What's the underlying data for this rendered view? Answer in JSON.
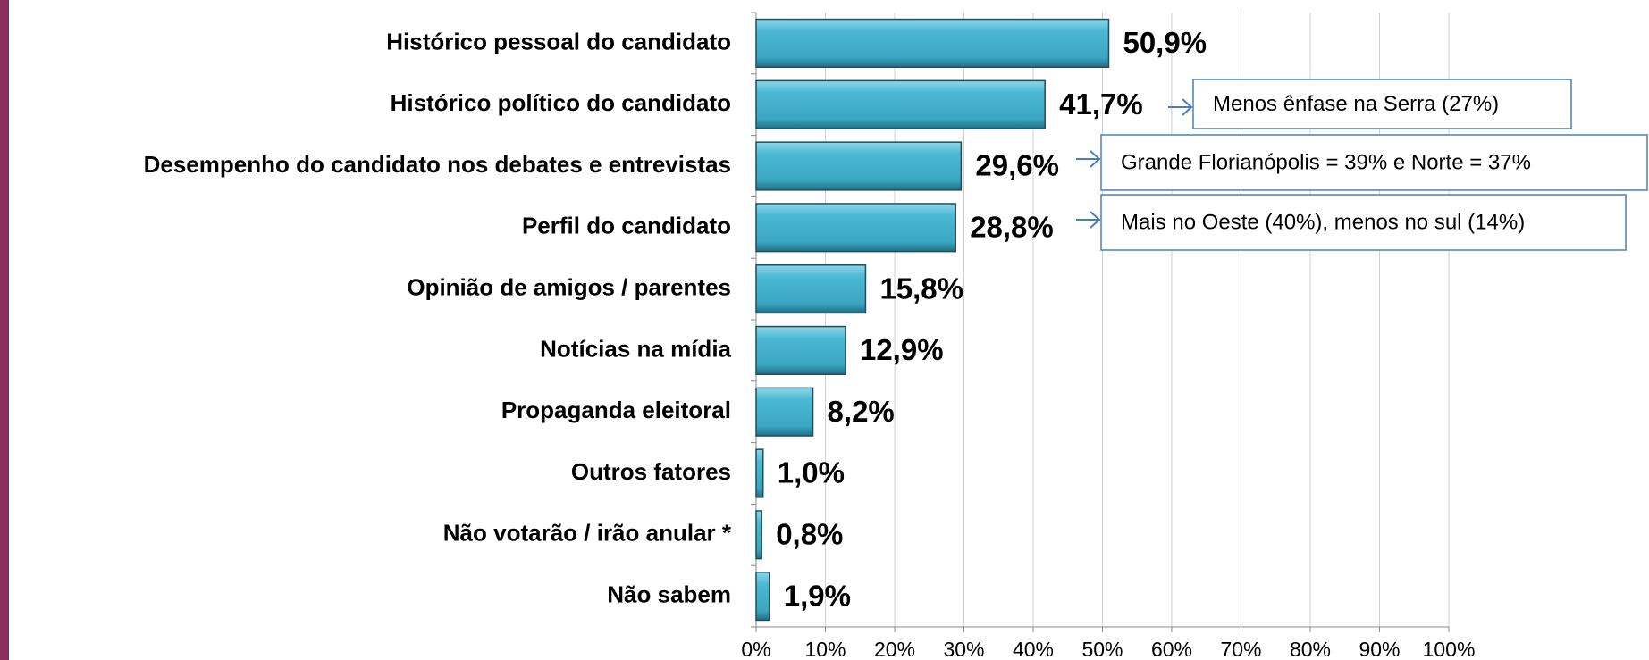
{
  "chart_data": {
    "type": "bar",
    "orientation": "horizontal",
    "categories": [
      "Histórico pessoal do candidato",
      "Histórico político do candidato",
      "Desempenho do candidato nos debates e entrevistas",
      "Perfil  do candidato",
      "Opinião de amigos / parentes",
      "Notícias na mídia",
      "Propaganda eleitoral",
      "Outros fatores",
      "Não votarão / irão anular *",
      "Não sabem"
    ],
    "values": [
      50.9,
      41.7,
      29.6,
      28.8,
      15.8,
      12.9,
      8.2,
      1.0,
      0.8,
      1.9
    ],
    "value_labels": [
      "50,9%",
      "41,7%",
      "29,6%",
      "28,8%",
      "15,8%",
      "12,9%",
      "8,2%",
      "1,0%",
      "0,8%",
      "1,9%"
    ],
    "color": "#4bb8d4",
    "xlim": [
      0,
      100
    ],
    "xticks": [
      {
        "value": 0,
        "label": "0%"
      },
      {
        "value": 10,
        "label": "10%"
      },
      {
        "value": 20,
        "label": "20%"
      },
      {
        "value": 30,
        "label": "30%"
      },
      {
        "value": 40,
        "label": "40%"
      },
      {
        "value": 50,
        "label": "50%"
      },
      {
        "value": 60,
        "label": "60%"
      },
      {
        "value": 70,
        "label": "70%"
      },
      {
        "value": 80,
        "label": "80%"
      },
      {
        "value": 90,
        "label": "90%"
      },
      {
        "value": 100,
        "label": "100%"
      }
    ],
    "grid": true,
    "annotations": [
      "Menos ênfase na Serra (27%)",
      "Grande Florianópolis = 39% e Norte = 37%",
      "Mais no Oeste (40%), menos no sul (14%)"
    ]
  }
}
